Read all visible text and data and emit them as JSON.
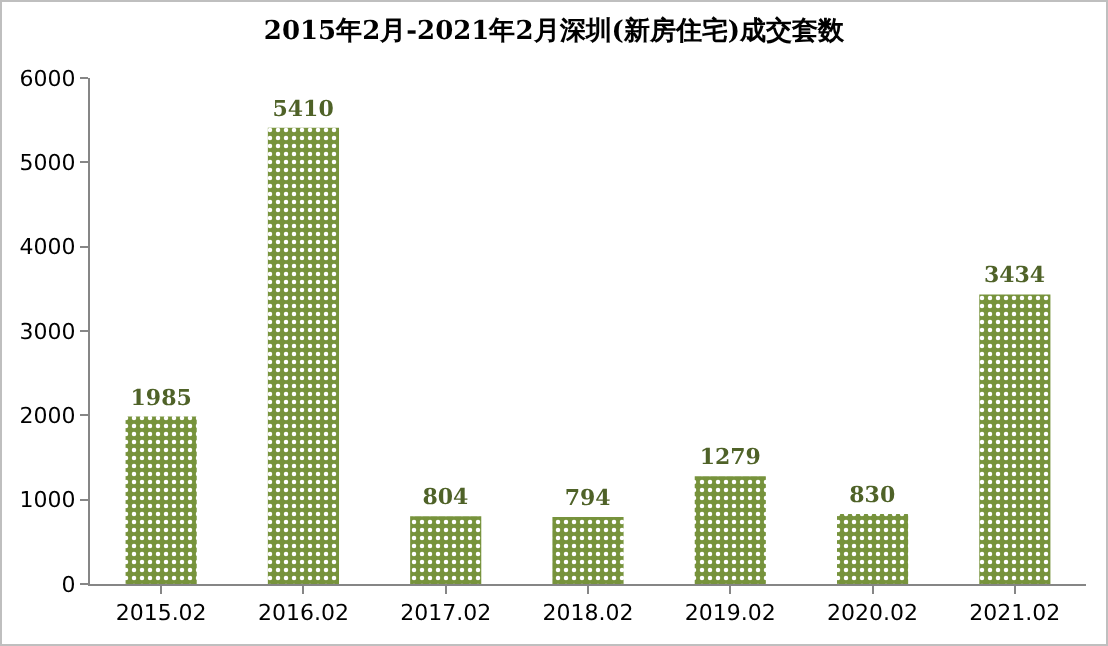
{
  "chart_data": {
    "type": "bar",
    "title": "2015年2月-2021年2月深圳(新房住宅)成交套数",
    "categories": [
      "2015.02",
      "2016.02",
      "2017.02",
      "2018.02",
      "2019.02",
      "2020.02",
      "2021.02"
    ],
    "values": [
      1985,
      5410,
      804,
      794,
      1279,
      830,
      3434
    ],
    "color": "#77933c",
    "ylim": [
      0,
      6000
    ],
    "yticks": [
      0,
      1000,
      2000,
      3000,
      4000,
      5000,
      6000
    ],
    "grid": false,
    "data_labels": true
  }
}
